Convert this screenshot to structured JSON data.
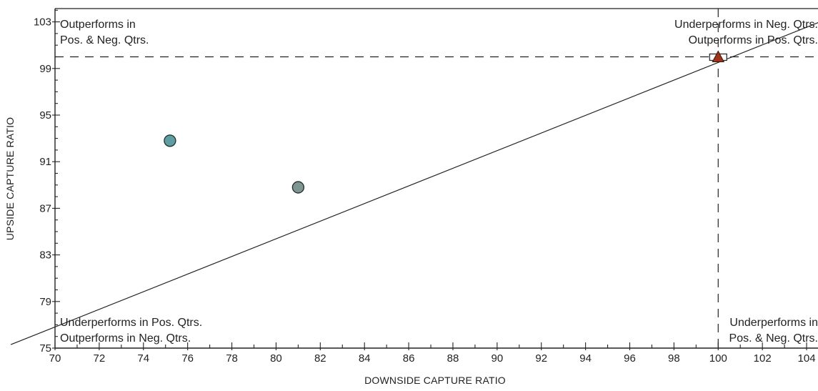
{
  "chart_data": {
    "type": "scatter",
    "xlabel": "DOWNSIDE CAPTURE RATIO",
    "ylabel": "UPSIDE CAPTURE RATIO",
    "xlim": [
      70,
      105
    ],
    "ylim": [
      75,
      105
    ],
    "x_ticks": [
      70,
      72,
      74,
      76,
      78,
      80,
      82,
      84,
      86,
      88,
      90,
      92,
      94,
      96,
      98,
      100,
      102,
      104
    ],
    "y_ticks": [
      75,
      79,
      83,
      87,
      91,
      95,
      99,
      103
    ],
    "grid": false,
    "reference_lines": {
      "horizontal_y": 100,
      "vertical_x": 100,
      "diagonal": {
        "x": [
          68,
          105
        ],
        "y": [
          75.3,
          103.3
        ]
      }
    },
    "points": [
      {
        "x": 75.2,
        "y": 92.8,
        "marker": "circle",
        "color": "#5f9ea0"
      },
      {
        "x": 81.0,
        "y": 88.8,
        "marker": "circle",
        "color": "#7f9690"
      },
      {
        "x": 100.0,
        "y": 100.0,
        "marker": "square",
        "color": "#ffffff"
      },
      {
        "x": 100.0,
        "y": 100.0,
        "marker": "triangle",
        "color": "#a0341a"
      }
    ],
    "quadrant_labels": {
      "top_left": [
        "Outperforms in",
        "Pos. & Neg. Qtrs."
      ],
      "top_right": [
        "Underperforms in Neg. Qtrs.",
        "Outperforms in Pos. Qtrs."
      ],
      "bottom_left": [
        "Underperforms in Pos. Qtrs.",
        "Outperforms in Neg. Qtrs."
      ],
      "bottom_right": [
        "Underperforms in",
        "Pos. & Neg. Qtrs."
      ]
    }
  }
}
